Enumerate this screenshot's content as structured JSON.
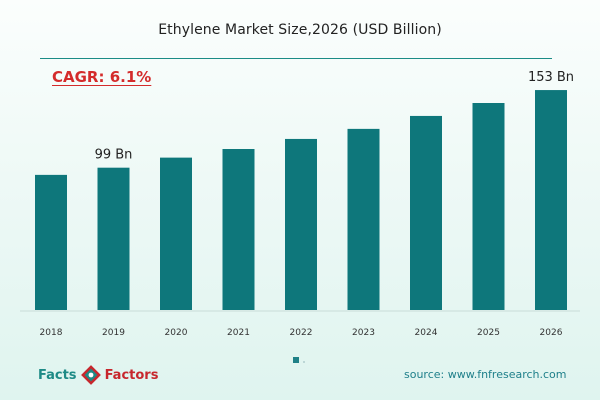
{
  "chart_data": {
    "type": "bar",
    "title": "Ethylene Market Size,2026 (USD Billion)",
    "categories": [
      "2018",
      "2019",
      "2020",
      "2021",
      "2022",
      "2023",
      "2024",
      "2025",
      "2026"
    ],
    "values": [
      94,
      99,
      106,
      112,
      119,
      126,
      135,
      144,
      153
    ],
    "data_labels": [
      {
        "category": "2019",
        "text": "99 Bn"
      },
      {
        "category": "2026",
        "text": "153 Bn"
      }
    ],
    "bar_color": "#0e777b",
    "ylim": [
      0,
      160
    ],
    "grid": false,
    "legend": "bottom-center"
  },
  "annotation": {
    "cagr": "CAGR: 6.1%"
  },
  "brand": {
    "word1": "Facts",
    "word2": "Factors"
  },
  "source": "source: www.fnfresearch.com",
  "colors": {
    "accent": "#1e8a86",
    "brand_red": "#c7272d",
    "cagr_red": "#d42b2b"
  }
}
